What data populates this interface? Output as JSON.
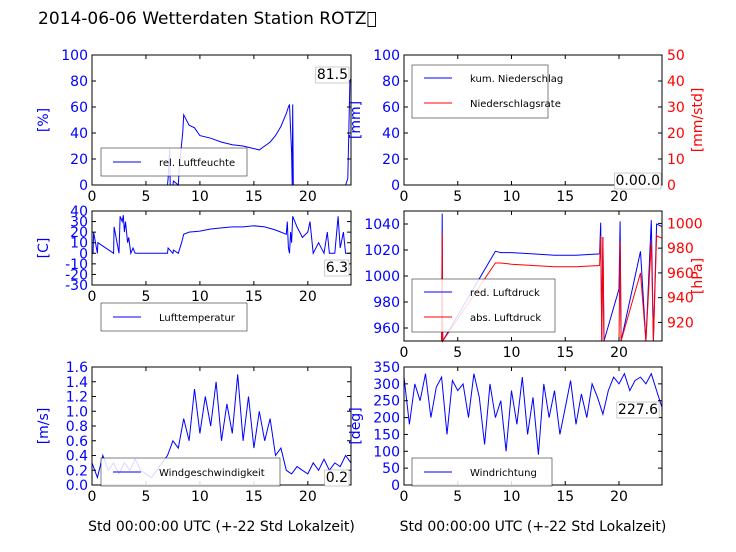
{
  "title": "2014-06-06 Wetterdaten Station ROTZ\u0000",
  "chart_data": [
    {
      "type": "line",
      "ylabel": "[%]",
      "xlim": [
        0,
        24
      ],
      "ylim": [
        0,
        100
      ],
      "x_ticks": [
        0,
        5,
        10,
        15,
        20
      ],
      "y_ticks": [
        0,
        20,
        40,
        60,
        80,
        100
      ],
      "legend": "lower-left",
      "series": [
        {
          "name": "rel. Luftfeuchte",
          "color": "#0000ff",
          "x": [
            0,
            7,
            7.05,
            7.2,
            7.25,
            7.5,
            7.55,
            8,
            8.1,
            8.4,
            8.5,
            9,
            9.5,
            10,
            11,
            12,
            13,
            14,
            15,
            15.5,
            16,
            16.5,
            17,
            17.5,
            18,
            18.2,
            18.3,
            18.5,
            18.55,
            18.6,
            18.65,
            19,
            19.5,
            20,
            20.5,
            21,
            22,
            23,
            23.5,
            23.7,
            23.9,
            24
          ],
          "y": [
            0,
            0,
            5,
            28,
            0,
            0,
            3,
            0,
            15,
            40,
            54,
            46,
            44,
            38,
            36,
            33,
            31,
            30,
            28,
            27,
            30,
            33,
            38,
            45,
            55,
            60,
            62,
            25,
            0,
            62,
            0,
            0,
            0,
            0,
            0,
            0,
            0,
            0,
            0,
            5,
            80,
            82
          ]
        }
      ],
      "value_label": "81.5"
    },
    {
      "type": "line",
      "ylabel": "[mm]",
      "ylabel2": "[mm/std]",
      "xlim": [
        0,
        24
      ],
      "ylim": [
        0,
        100
      ],
      "ylim2": [
        0,
        50
      ],
      "x_ticks": [
        0,
        5,
        10,
        15,
        20
      ],
      "y_ticks": [
        0,
        20,
        40,
        60,
        80,
        100
      ],
      "y2_ticks": [
        0,
        10,
        20,
        30,
        40,
        50
      ],
      "legend": "upper-left",
      "series": [
        {
          "name": "kum. Niederschlag",
          "color": "#0000ff",
          "x": [
            0,
            24
          ],
          "y": [
            0,
            0
          ]
        },
        {
          "name": "Niederschlagsrate",
          "color": "#ff0000",
          "axis": "right",
          "x": [
            0,
            24
          ],
          "y": [
            0,
            0
          ]
        }
      ],
      "value_label": "0.00.0"
    },
    {
      "type": "line",
      "ylabel": "[C]",
      "xlim": [
        0,
        24
      ],
      "ylim": [
        -30,
        40
      ],
      "x_ticks": [
        0,
        5,
        10,
        15,
        20
      ],
      "y_ticks": [
        -30,
        -20,
        -10,
        0,
        10,
        20,
        30,
        40
      ],
      "legend": "lower-left",
      "series": [
        {
          "name": "Lufttemperatur",
          "color": "#0000ff",
          "x": [
            0,
            0.1,
            0.15,
            0.5,
            0.55,
            2,
            2.05,
            2.5,
            2.6,
            2.8,
            2.9,
            3,
            3.1,
            3.3,
            3.4,
            3.6,
            3.8,
            4,
            5,
            6,
            6.5,
            7,
            7.05,
            7.5,
            7.55,
            8,
            8.3,
            8.5,
            9,
            10,
            11,
            12,
            13,
            14,
            15,
            16,
            17,
            17.5,
            18,
            18.1,
            18.2,
            18.3,
            18.4,
            18.5,
            18.6,
            19,
            19.5,
            20,
            20.2,
            20.5,
            21,
            21.5,
            21.8,
            22,
            22.5,
            22.8,
            23,
            23.3,
            23.5,
            24
          ],
          "y": [
            0,
            0,
            20,
            0,
            10,
            0,
            25,
            0,
            35,
            30,
            36,
            20,
            30,
            10,
            15,
            0,
            5,
            0,
            0,
            0,
            0,
            0,
            5,
            0,
            3,
            0,
            10,
            18,
            20,
            21,
            23,
            24,
            25,
            25,
            26,
            25,
            22,
            20,
            18,
            30,
            5,
            0,
            20,
            10,
            35,
            25,
            15,
            20,
            30,
            0,
            10,
            0,
            20,
            0,
            0,
            35,
            5,
            20,
            0,
            0
          ]
        }
      ],
      "value_label": "6.3"
    },
    {
      "type": "line",
      "ylabel2": "[hPa]",
      "xlim": [
        0,
        24
      ],
      "ylim": [
        950,
        1050
      ],
      "ylim2": [
        905,
        1010
      ],
      "x_ticks": [
        0,
        5,
        10,
        15,
        20
      ],
      "y_ticks": [
        960,
        980,
        1000,
        1020,
        1040
      ],
      "y2_ticks": [
        920,
        940,
        960,
        980,
        1000
      ],
      "legend": "lower-left",
      "series": [
        {
          "name": "red. Luftdruck",
          "color": "#0000ff",
          "x": [
            3.5,
            3.55,
            3.6,
            8.5,
            9,
            10,
            12,
            14,
            16,
            18.2,
            18.3,
            18.4,
            18.5,
            18.6,
            20,
            20.1,
            20.2,
            22,
            22.5,
            23,
            23.2,
            23.5,
            24
          ],
          "y": [
            950,
            1048,
            950,
            1019,
            1018,
            1018,
            1017,
            1016,
            1016,
            1017,
            1041,
            950,
            1030,
            950,
            990,
            1042,
            950,
            1019,
            950,
            1043,
            950,
            1040,
            1038
          ]
        },
        {
          "name": "abs. Luftdruck",
          "color": "#ff0000",
          "axis": "right",
          "x": [
            3.5,
            3.55,
            3.6,
            8.5,
            9,
            10,
            12,
            14,
            16,
            18.2,
            18.3,
            18.4,
            18.5,
            18.6,
            20,
            20.1,
            20.2,
            22,
            22.5,
            23,
            23.2,
            23.5,
            24
          ],
          "y": [
            905,
            992,
            905,
            968,
            968,
            967,
            966,
            965,
            965,
            966,
            990,
            905,
            988,
            905,
            905,
            985,
            905,
            960,
            905,
            985,
            905,
            990,
            988
          ]
        }
      ]
    },
    {
      "type": "line",
      "ylabel": "[m/s]",
      "xlabel": "Std 00:00:00 UTC (+-22 Std Lokalzeit)",
      "xlim": [
        0,
        24
      ],
      "ylim": [
        0,
        1.6
      ],
      "x_ticks": [
        0,
        5,
        10,
        15,
        20
      ],
      "y_ticks": [
        0.0,
        0.2,
        0.4,
        0.6,
        0.8,
        1.0,
        1.2,
        1.4,
        1.6
      ],
      "legend": "lower-left",
      "series": [
        {
          "name": "Windgeschwindigkeit",
          "color": "#0000ff",
          "x": [
            0,
            0.5,
            1,
            1.5,
            2,
            2.5,
            3,
            3.5,
            4,
            4.5,
            5,
            5.5,
            6,
            6.5,
            7,
            7.5,
            8,
            8.5,
            9,
            9.5,
            10,
            10.5,
            11,
            11.5,
            12,
            12.5,
            13,
            13.5,
            14,
            14.5,
            15,
            15.5,
            16,
            16.5,
            17,
            17.5,
            18,
            18.5,
            19,
            19.5,
            20,
            20.5,
            21,
            21.5,
            22,
            22.5,
            23,
            23.5,
            24
          ],
          "y": [
            0.3,
            0.1,
            0.4,
            0.2,
            0.3,
            0.15,
            0.3,
            0.2,
            0.35,
            0.2,
            0.15,
            0.1,
            0.2,
            0.3,
            0.4,
            0.6,
            0.5,
            0.9,
            0.6,
            1.3,
            0.7,
            1.2,
            0.8,
            1.4,
            0.6,
            1.1,
            0.7,
            1.5,
            0.6,
            1.2,
            0.5,
            1.0,
            0.6,
            0.9,
            0.4,
            0.5,
            0.2,
            0.15,
            0.25,
            0.2,
            0.15,
            0.3,
            0.2,
            0.35,
            0.2,
            0.3,
            0.25,
            0.4,
            0.3
          ]
        }
      ],
      "value_label": "0.2"
    },
    {
      "type": "line",
      "ylabel": "[deg]",
      "xlabel": "Std 00:00:00 UTC (+-22 Std Lokalzeit)",
      "xlim": [
        0,
        24
      ],
      "ylim": [
        0,
        350
      ],
      "x_ticks": [
        0,
        5,
        10,
        15,
        20
      ],
      "y_ticks": [
        0,
        50,
        100,
        150,
        200,
        250,
        300,
        350
      ],
      "legend": "lower-left",
      "series": [
        {
          "name": "Windrichtung",
          "color": "#0000ff",
          "x": [
            0,
            0.5,
            1,
            1.5,
            2,
            2.5,
            3,
            3.5,
            4,
            4.5,
            5,
            5.5,
            6,
            6.5,
            7,
            7.5,
            8,
            8.5,
            9,
            9.5,
            10,
            10.5,
            11,
            11.5,
            12,
            12.5,
            13,
            13.5,
            14,
            14.5,
            15,
            15.5,
            16,
            16.5,
            17,
            17.5,
            18,
            18.5,
            19,
            19.5,
            20,
            20.5,
            21,
            21.5,
            22,
            22.5,
            23,
            23.5,
            24
          ],
          "y": [
            320,
            180,
            300,
            250,
            330,
            200,
            290,
            320,
            150,
            310,
            280,
            300,
            200,
            330,
            260,
            120,
            300,
            200,
            250,
            100,
            280,
            180,
            320,
            150,
            260,
            90,
            300,
            200,
            280,
            150,
            230,
            310,
            180,
            270,
            200,
            300,
            260,
            210,
            280,
            320,
            300,
            330,
            280,
            310,
            320,
            300,
            330,
            280,
            230
          ]
        }
      ],
      "value_label": "227.6"
    }
  ]
}
